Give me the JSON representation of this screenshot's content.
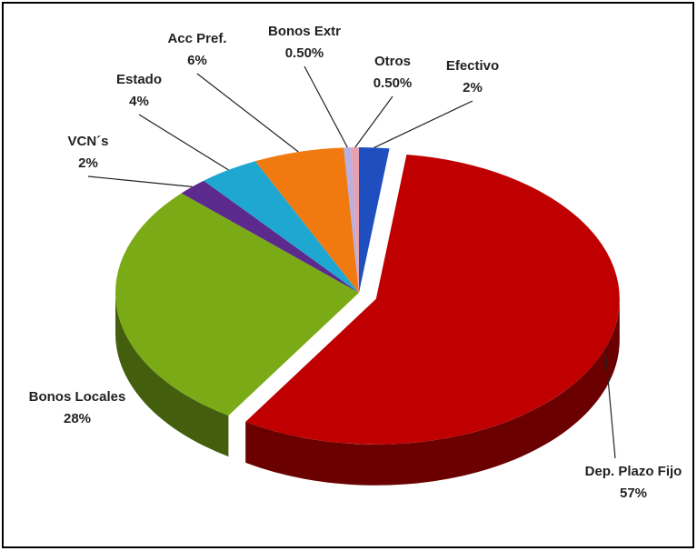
{
  "chart_data": {
    "type": "pie",
    "categories": [
      "Efectivo",
      "Dep. Plazo Fijo",
      "Bonos Locales",
      "VCN´s",
      "Estado",
      "Acc Pref.",
      "Bonos Extr",
      "Otros"
    ],
    "values": [
      2,
      57,
      28,
      2,
      4,
      6,
      0.5,
      0.5
    ],
    "value_labels": [
      "2%",
      "57%",
      "28%",
      "2%",
      "4%",
      "6%",
      "0.50%",
      "0.50%"
    ],
    "colors": [
      "#1f4fbf",
      "#c00000",
      "#7aab17",
      "#5b2a8c",
      "#1ea7d1",
      "#f07a10",
      "#b9b0e0",
      "#e8a0b0"
    ]
  }
}
